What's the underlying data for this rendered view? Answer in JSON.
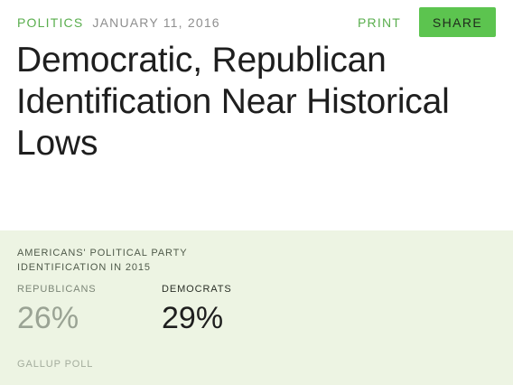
{
  "header": {
    "category": "POLITICS",
    "date": "JANUARY 11, 2016",
    "print_label": "PRINT",
    "share_label": "SHARE"
  },
  "article": {
    "headline_lines": [
      "Democratic, Republican",
      "Identification Near Historical",
      "Lows"
    ]
  },
  "stat_card": {
    "title_lines": [
      "AMERICANS' POLITICAL PARTY",
      "IDENTIFICATION IN 2015"
    ],
    "stats": [
      {
        "label": "REPUBLICANS",
        "value": "26%"
      },
      {
        "label": "DEMOCRATS",
        "value": "29%"
      }
    ],
    "source": "GALLUP POLL"
  },
  "colors": {
    "accent": "#5aae4e",
    "share_button": "#5cc44f",
    "card_background": "#edf4e3"
  }
}
